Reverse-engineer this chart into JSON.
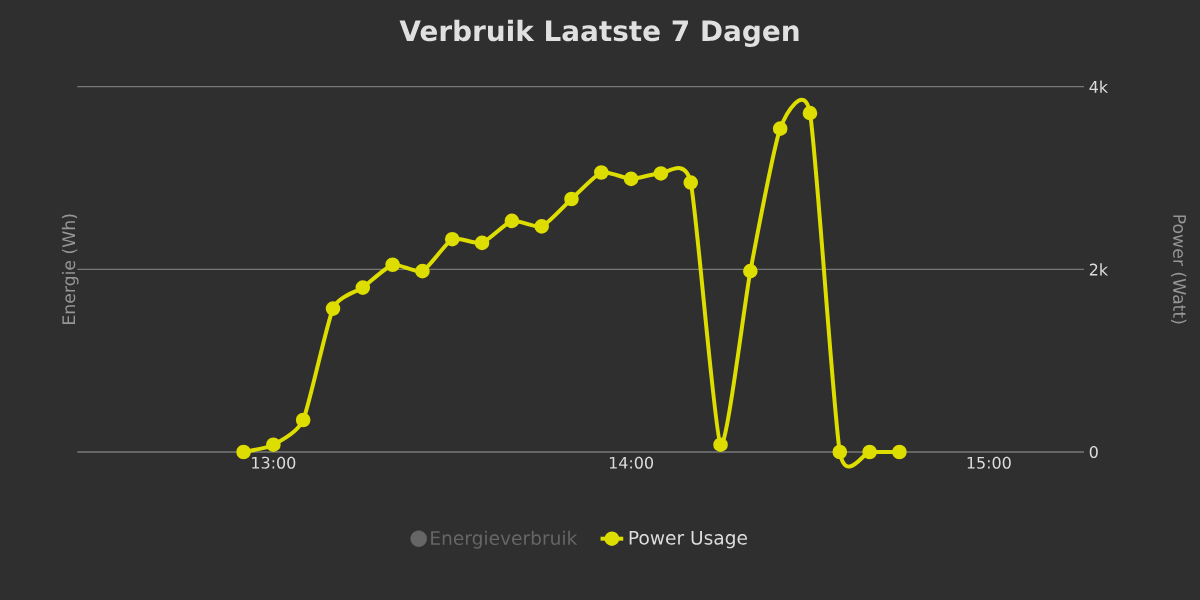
{
  "chart_data": {
    "type": "line",
    "title": "Verbruik Laatste 7 Dagen",
    "ylabel": "Energie (Wh)",
    "y2label": "Power (Watt)",
    "x": [
      12.9167,
      13.0,
      13.0833,
      13.1667,
      13.25,
      13.3333,
      13.4167,
      13.5,
      13.5833,
      13.6667,
      13.75,
      13.8333,
      13.9167,
      14.0,
      14.0833,
      14.1667,
      14.25,
      14.3333,
      14.4167,
      14.5,
      14.5833,
      14.6667,
      14.75
    ],
    "series": [
      {
        "name": "Energieverbruik",
        "color": "#666666",
        "values": [
          null,
          null,
          null,
          null,
          null,
          null,
          null,
          null,
          null,
          null,
          null,
          null,
          null,
          null,
          null,
          null,
          null,
          null,
          null,
          null,
          null,
          null,
          null
        ]
      },
      {
        "name": "Power Usage",
        "color": "#dddd00",
        "axis": "y2",
        "values": [
          0,
          80,
          350,
          1570,
          1800,
          2050,
          1980,
          2330,
          2290,
          2530,
          2470,
          2770,
          3060,
          2990,
          3050,
          2950,
          80,
          1980,
          3540,
          3710,
          0,
          0,
          0
        ]
      }
    ],
    "xlim": [
      12.452,
      15.266
    ],
    "xticks": [
      {
        "value": 13,
        "label": "13:00"
      },
      {
        "value": 14,
        "label": "14:00"
      },
      {
        "value": 15,
        "label": "15:00"
      }
    ],
    "y2lim": [
      0,
      4000
    ],
    "y2ticks": [
      {
        "value": 0,
        "label": "0"
      },
      {
        "value": 2000,
        "label": "2k"
      },
      {
        "value": 4000,
        "label": "4k"
      }
    ],
    "grid": "y",
    "legend": "bottom",
    "marker": "circle",
    "line_style": "solid"
  }
}
